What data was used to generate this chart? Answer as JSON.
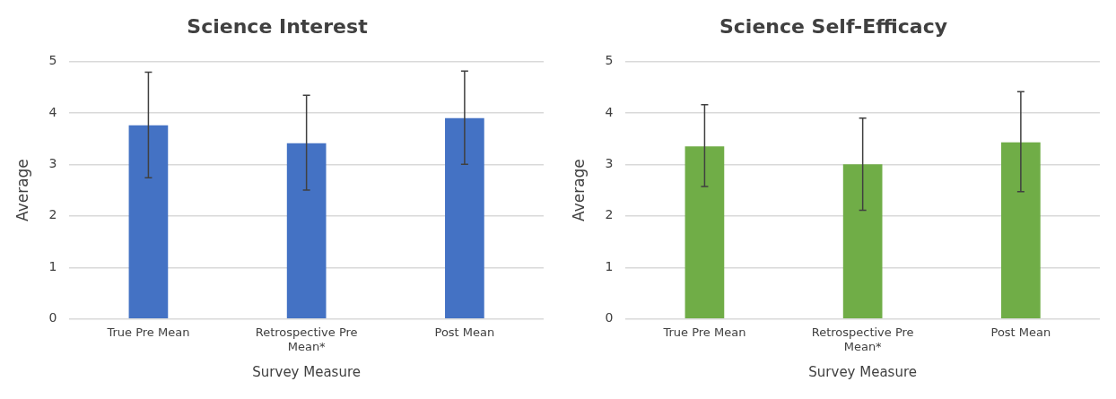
{
  "chart_data": [
    {
      "type": "bar",
      "title": "Science Interest",
      "xlabel": "Survey Measure",
      "ylabel": "Average",
      "categories": [
        "True Pre Mean",
        "Retrospective Pre Mean*",
        "Post Mean"
      ],
      "values": [
        3.76,
        3.41,
        3.9
      ],
      "errors": [
        [
          2.74,
          4.79
        ],
        [
          2.5,
          4.34
        ],
        [
          3.0,
          4.81
        ]
      ],
      "color": "#4472c4",
      "ylim": [
        0,
        5
      ],
      "yticks": [
        0,
        1,
        2,
        3,
        4,
        5
      ],
      "grid": "y",
      "legend": false
    },
    {
      "type": "bar",
      "title": "Science Self-Efficacy",
      "xlabel": "Survey Measure",
      "ylabel": "Average",
      "categories": [
        "True Pre Mean",
        "Retrospective Pre Mean*",
        "Post Mean"
      ],
      "values": [
        3.35,
        3.0,
        3.43
      ],
      "errors": [
        [
          2.57,
          4.16
        ],
        [
          2.11,
          3.9
        ],
        [
          2.47,
          4.41
        ]
      ],
      "color": "#70ad47",
      "ylim": [
        0,
        5
      ],
      "yticks": [
        0,
        1,
        2,
        3,
        4,
        5
      ],
      "grid": "y",
      "legend": false
    }
  ]
}
